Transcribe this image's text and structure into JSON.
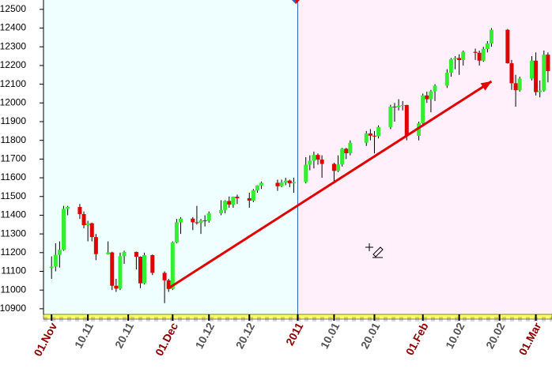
{
  "chart_data": {
    "type": "candlestick",
    "x": [
      "01.11",
      "02.11",
      "03.11",
      "04.11",
      "05.11",
      "08.11",
      "09.11",
      "10.11",
      "11.11",
      "12.11",
      "15.11",
      "16.11",
      "17.11",
      "18.11",
      "19.11",
      "22.11",
      "23.11",
      "24.11",
      "26.11",
      "29.11",
      "30.11",
      "01.12",
      "02.12",
      "03.12",
      "06.12",
      "07.12",
      "08.12",
      "09.12",
      "10.12",
      "13.12",
      "14.12",
      "15.12",
      "16.12",
      "17.12",
      "20.12",
      "21.12",
      "22.12",
      "23.12",
      "27.12",
      "28.12",
      "29.12",
      "30.12",
      "31.12",
      "03.01",
      "04.01",
      "05.01",
      "06.01",
      "07.01",
      "10.01",
      "11.01",
      "12.01",
      "13.01",
      "14.01",
      "18.01",
      "19.01",
      "20.01",
      "21.01",
      "24.01",
      "25.01",
      "26.01",
      "27.01",
      "28.01",
      "31.01",
      "01.02",
      "02.02",
      "03.02",
      "04.02",
      "07.02",
      "08.02",
      "09.02",
      "10.02",
      "11.02",
      "14.02",
      "15.02",
      "16.02",
      "17.02",
      "18.02",
      "22.02",
      "23.02",
      "24.02",
      "25.02",
      "28.02",
      "01.03",
      "02.03",
      "03.03",
      "04.03"
    ],
    "open": [
      11118,
      11125,
      11188,
      11215,
      11434,
      11444,
      11406,
      11347,
      11357,
      11283,
      11192,
      11201,
      11023,
      11008,
      11181,
      11204,
      11178,
      11036,
      11187,
      11092,
      11052,
      11006,
      11255,
      11362,
      11382,
      11362,
      11359,
      11372,
      11370,
      11410,
      11428,
      11476,
      11457,
      11499,
      11491,
      11478,
      11533,
      11559,
      11573,
      11555,
      11575,
      11585,
      11570,
      11577,
      11670,
      11691,
      11722,
      11697,
      11674,
      11637,
      11671,
      11755,
      11731,
      11787,
      11837,
      11825,
      11822,
      11871,
      11980,
      11977,
      11985,
      11989,
      11824,
      11891,
      12040,
      12020,
      12062,
      12092,
      12161,
      12234,
      12240,
      12229,
      12273,
      12268,
      12226,
      12288,
      12318,
      12391,
      12212,
      12105,
      12068,
      12130,
      12226,
      12058,
      12066,
      12258
    ],
    "high": [
      11180,
      11250,
      11260,
      11450,
      11450,
      11460,
      11420,
      11370,
      11360,
      11300,
      11260,
      11205,
      11060,
      11200,
      11210,
      11205,
      11180,
      11200,
      11190,
      11100,
      11060,
      11260,
      11380,
      11390,
      11390,
      11450,
      11380,
      11400,
      11420,
      11480,
      11480,
      11500,
      11500,
      11510,
      11520,
      11540,
      11560,
      11580,
      11590,
      11590,
      11600,
      11590,
      11600,
      11710,
      11720,
      11740,
      11730,
      11720,
      11680,
      11720,
      11760,
      11760,
      11800,
      11850,
      11860,
      11850,
      11880,
      11990,
      12000,
      12020,
      12010,
      11990,
      11900,
      12050,
      12060,
      12070,
      12100,
      12180,
      12240,
      12250,
      12260,
      12280,
      12290,
      12280,
      12300,
      12330,
      12400,
      12395,
      12230,
      12150,
      12140,
      12250,
      12270,
      12120,
      12280,
      12270
    ],
    "low": [
      11060,
      11100,
      11120,
      11210,
      11400,
      11380,
      11330,
      11260,
      11260,
      11160,
      11190,
      11000,
      10990,
      11000,
      11140,
      11110,
      11010,
      11030,
      11080,
      10930,
      10990,
      11000,
      11250,
      11300,
      11320,
      11350,
      11300,
      11340,
      11360,
      11400,
      11410,
      11440,
      11440,
      11460,
      11440,
      11470,
      11520,
      11540,
      11530,
      11550,
      11560,
      11550,
      11520,
      11570,
      11640,
      11650,
      11670,
      11600,
      11570,
      11630,
      11660,
      11700,
      11720,
      11770,
      11800,
      11730,
      11810,
      11860,
      11900,
      11960,
      11960,
      11800,
      11800,
      11880,
      12000,
      11950,
      12010,
      12080,
      12140,
      12180,
      12150,
      12200,
      12230,
      12200,
      12220,
      12270,
      12300,
      12210,
      12070,
      11980,
      12060,
      12120,
      12040,
      12030,
      12060,
      12110
    ],
    "close": [
      11125,
      11188,
      11215,
      11434,
      11444,
      11406,
      11347,
      11357,
      11283,
      11192,
      11201,
      11023,
      11008,
      11181,
      11204,
      11178,
      11036,
      11187,
      11092,
      11052,
      11006,
      11255,
      11362,
      11382,
      11362,
      11359,
      11372,
      11370,
      11410,
      11428,
      11476,
      11457,
      11499,
      11491,
      11478,
      11533,
      11559,
      11573,
      11555,
      11575,
      11585,
      11570,
      11577,
      11670,
      11691,
      11722,
      11697,
      11674,
      11637,
      11671,
      11755,
      11731,
      11787,
      11837,
      11825,
      11822,
      11871,
      11980,
      11977,
      11985,
      11989,
      11824,
      11891,
      12040,
      12020,
      12062,
      12092,
      12161,
      12234,
      12240,
      12229,
      12273,
      12268,
      12226,
      12288,
      12318,
      12391,
      12212,
      12105,
      12068,
      12130,
      12226,
      12058,
      12066,
      12258,
      12170
    ],
    "up_color": "#33ee33",
    "down_color": "#e00000",
    "xlim": [
      "30.10",
      "05.03"
    ],
    "xticks": [
      {
        "value": "01.11",
        "label": "01.Nov"
      },
      "10.11",
      "20.11",
      {
        "value": "01.12",
        "label": "01.Dec"
      },
      "10.12",
      "20.12",
      {
        "value": "01.01",
        "label": "2011"
      },
      "10.01",
      "20.01",
      {
        "value": "01.02",
        "label": "01.Feb"
      },
      "10.02",
      "20.02",
      {
        "value": "01.03",
        "label": "01.Mar"
      }
    ],
    "ylim": [
      10870,
      12550
    ],
    "yticks": [
      10900,
      11000,
      11100,
      11200,
      11300,
      11400,
      11500,
      11600,
      11700,
      11800,
      11900,
      12000,
      12100,
      12200,
      12300,
      12400,
      12500
    ],
    "regions": [
      {
        "from": "30.10",
        "to": "01.01",
        "color": "#efffff"
      },
      {
        "from": "01.01",
        "to": "05.03",
        "color": "#fff0fb"
      }
    ],
    "marker_line": {
      "x": "01.01",
      "color": "#3060c0"
    },
    "arrow": {
      "from": [
        "30.11",
        11010
      ],
      "to": [
        "18.02",
        12115
      ],
      "color": "#e00000"
    }
  }
}
